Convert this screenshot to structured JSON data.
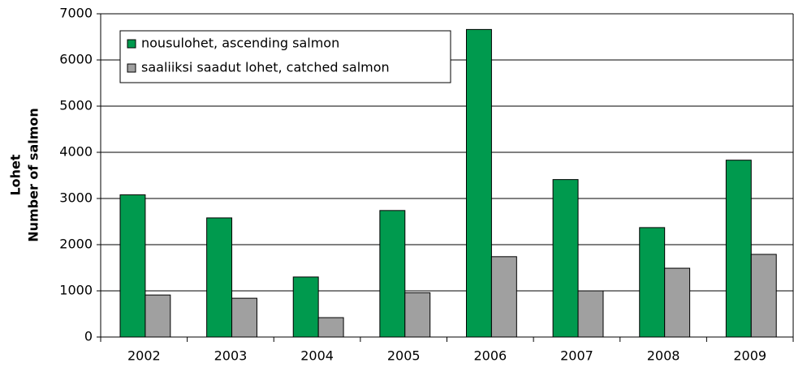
{
  "chart_data": {
    "type": "bar",
    "ylabel": [
      "Lohet",
      "Number of salmon"
    ],
    "categories": [
      "2002",
      "2003",
      "2004",
      "2005",
      "2006",
      "2007",
      "2008",
      "2009"
    ],
    "series": [
      {
        "name": "nousulohet, ascending salmon",
        "color": "#009a4e",
        "values": [
          3080,
          2580,
          1300,
          2740,
          6660,
          3410,
          2370,
          3830
        ]
      },
      {
        "name": "saaliiksi saadut lohet, catched salmon",
        "color": "#a0a0a0",
        "values": [
          910,
          840,
          420,
          960,
          1740,
          1000,
          1490,
          1790
        ]
      }
    ],
    "ylim": [
      0,
      7000
    ],
    "yticks": [
      0,
      1000,
      2000,
      3000,
      4000,
      5000,
      6000,
      7000
    ],
    "grid": true,
    "legend": "top-left"
  }
}
